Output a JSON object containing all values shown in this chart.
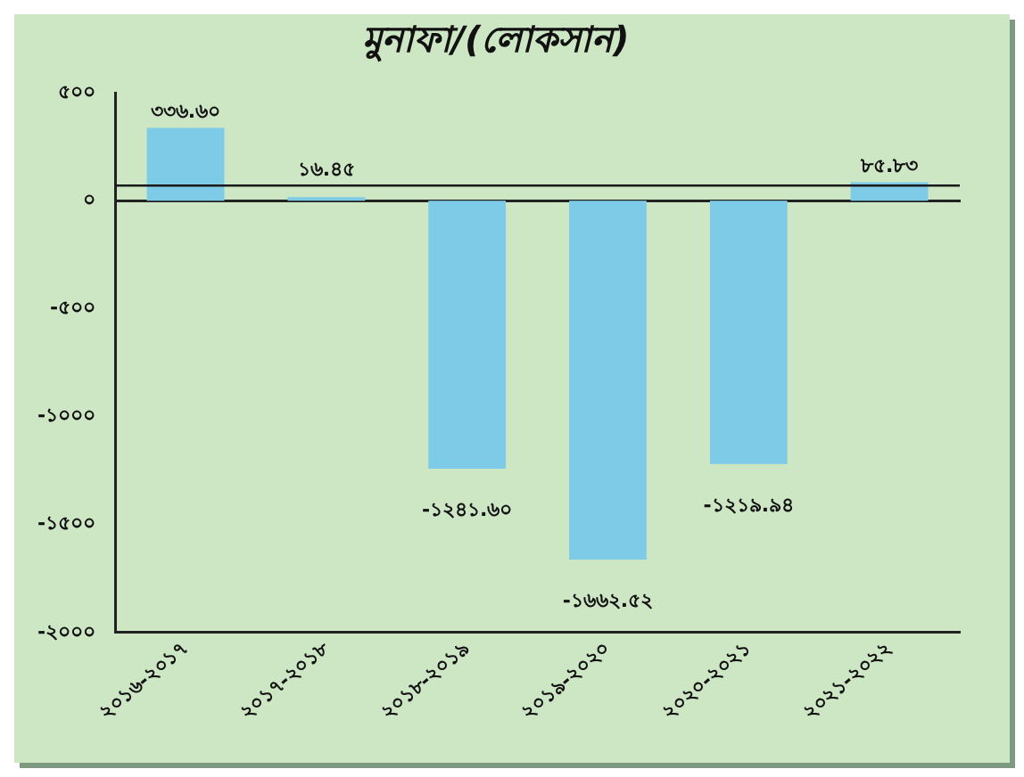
{
  "chart_data": {
    "type": "bar",
    "title": "মুনাফা/(লোকসান)",
    "categories": [
      "২০১৬-২০১৭",
      "২০১৭-২০১৮",
      "২০১৮-২০১৯",
      "২০১৯-২০২০",
      "২০২০-২০২১",
      "২০২১-২০২২"
    ],
    "values": [
      336.6,
      16.45,
      -1241.6,
      -1662.52,
      -1219.94,
      85.83
    ],
    "value_labels": [
      "৩৩৬.৬০",
      "১৬.৪৫",
      "-১২৪১.৬০",
      "-১৬৬২.৫২",
      "-১২১৯.৯৪",
      "৮৫.৮৩"
    ],
    "color": "#7ecbe8",
    "ylim": [
      -2000,
      500
    ],
    "yticks": [
      {
        "value": 500,
        "label": "৫০০"
      },
      {
        "value": 0,
        "label": "০"
      },
      {
        "value": -500,
        "label": "-৫০০"
      },
      {
        "value": -1000,
        "label": "-১০০০"
      },
      {
        "value": -1500,
        "label": "-১৫০০"
      },
      {
        "value": -2000,
        "label": "-২০০০"
      }
    ],
    "ref_lines": [
      {
        "axis": "y",
        "value": 70,
        "color": "#1a1a1a"
      }
    ],
    "legend": false
  }
}
